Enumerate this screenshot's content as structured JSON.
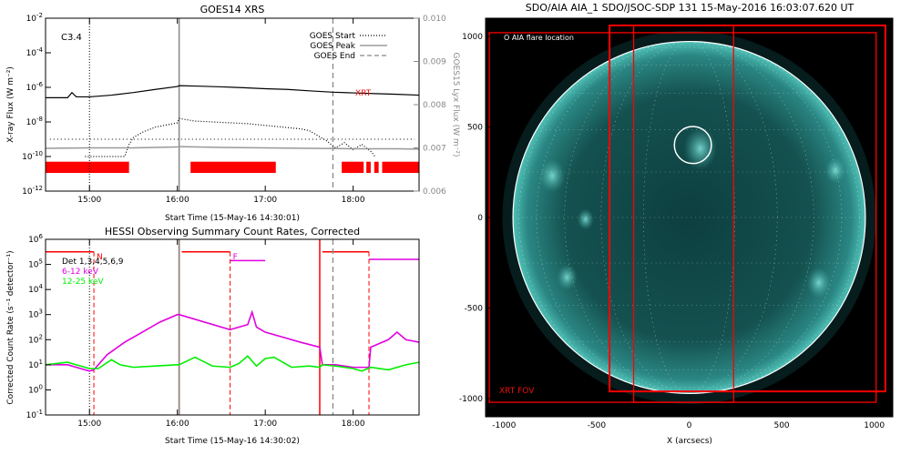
{
  "colors": {
    "red": "#ff0000",
    "magenta": "#e000e0",
    "green": "#00ee00",
    "gray": "#888888",
    "sun_dark": "#0a3a3c",
    "sun_light": "#3fa6a0"
  },
  "chart_data": [
    {
      "type": "line",
      "id": "goes",
      "title": "GOES14 XRS",
      "xlabel": "Start Time (15-May-16 14:30:01)",
      "ylabel": "X-ray Flux (W m⁻²)",
      "ylabel_right": "GOES15 Lyx Flux (W m⁻²)",
      "xticks": [
        {
          "t": 15,
          "label": "15:00"
        },
        {
          "t": 16,
          "label": "16:00"
        },
        {
          "t": 17,
          "label": "17:00"
        },
        {
          "t": 18,
          "label": "18:00"
        }
      ],
      "xlim": [
        14.5,
        18.75
      ],
      "ylim_log": [
        -12,
        -2
      ],
      "yticks": [
        {
          "e": -2,
          "base": "10",
          "exp": "-2"
        },
        {
          "e": -4,
          "base": "10",
          "exp": "-4"
        },
        {
          "e": -6,
          "base": "10",
          "exp": "-6"
        },
        {
          "e": -8,
          "base": "10",
          "exp": "-8"
        },
        {
          "e": -10,
          "base": "10",
          "exp": "-10"
        },
        {
          "e": -12,
          "base": "10",
          "exp": "-12"
        }
      ],
      "yticks_right": [
        "0.010",
        "0.009",
        "0.008",
        "0.007",
        "0.006"
      ],
      "ylim_right": [
        0.006,
        0.01
      ],
      "class_label": "C3.4",
      "xrt_label": "XRT",
      "legend": [
        {
          "name": "GOES Start",
          "style": "dotted"
        },
        {
          "name": "GOES Peak",
          "style": "solid"
        },
        {
          "name": "GOES End",
          "style": "dashed"
        }
      ],
      "events": {
        "start": 15.0,
        "peak": 16.02,
        "end": 17.77
      },
      "series": [
        {
          "name": "long",
          "t": [
            14.5,
            14.75,
            14.8,
            14.85,
            14.9,
            15.0,
            15.25,
            15.5,
            15.75,
            16.0,
            16.02,
            16.25,
            16.5,
            16.75,
            17.0,
            17.25,
            17.5,
            17.77,
            18.0,
            18.25,
            18.5,
            18.75
          ],
          "log": [
            -6.6,
            -6.6,
            -6.3,
            -6.55,
            -6.55,
            -6.55,
            -6.45,
            -6.3,
            -6.12,
            -5.95,
            -5.9,
            -5.93,
            -5.97,
            -6.02,
            -6.08,
            -6.12,
            -6.2,
            -6.28,
            -6.32,
            -6.36,
            -6.4,
            -6.45
          ]
        },
        {
          "name": "short",
          "t": [
            14.95,
            15.4,
            15.45,
            15.5,
            15.6,
            15.75,
            15.9,
            16.0,
            16.02,
            16.2,
            16.4,
            16.6,
            16.8,
            17.0,
            17.2,
            17.4,
            17.5,
            17.6,
            17.7,
            17.8,
            17.9,
            18.0,
            18.1,
            18.2,
            18.25
          ],
          "log": [
            -10.0,
            -10.0,
            -9.3,
            -8.9,
            -8.6,
            -8.3,
            -8.15,
            -8.05,
            -7.8,
            -7.95,
            -8.0,
            -8.05,
            -8.1,
            -8.2,
            -8.3,
            -8.4,
            -8.5,
            -8.8,
            -9.1,
            -9.5,
            -9.2,
            -9.6,
            -9.3,
            -9.7,
            -10.0
          ]
        },
        {
          "name": "lyx",
          "t": [
            14.5,
            15.0,
            15.5,
            16.0,
            16.02,
            16.5,
            17.0,
            17.5,
            18.0,
            18.5,
            18.75
          ],
          "val": [
            0.00699,
            0.007,
            0.007,
            0.00702,
            0.00703,
            0.00701,
            0.007,
            0.00699,
            0.00698,
            0.00698,
            0.00697
          ]
        }
      ],
      "red_bars": [
        [
          14.5,
          15.45
        ],
        [
          16.15,
          17.12
        ],
        [
          17.87,
          18.12
        ],
        [
          18.15,
          18.2
        ],
        [
          18.24,
          18.29
        ],
        [
          18.33,
          18.75
        ]
      ]
    },
    {
      "type": "line",
      "id": "hessi",
      "title": "HESSI Observing Summary Count Rates, Corrected",
      "xlabel": "Start Time (15-May-16 14:30:02)",
      "ylabel": "Corrected Count Rate (s⁻¹ detector⁻¹)",
      "xticks": [
        {
          "t": 15,
          "label": "15:00"
        },
        {
          "t": 16,
          "label": "16:00"
        },
        {
          "t": 17,
          "label": "17:00"
        },
        {
          "t": 18,
          "label": "18:00"
        }
      ],
      "xlim": [
        14.5,
        18.75
      ],
      "ylim_log": [
        -1,
        6
      ],
      "yticks": [
        {
          "e": 6,
          "base": "10",
          "exp": "6"
        },
        {
          "e": 5,
          "base": "10",
          "exp": "5"
        },
        {
          "e": 4,
          "base": "10",
          "exp": "4"
        },
        {
          "e": 3,
          "base": "10",
          "exp": "3"
        },
        {
          "e": 2,
          "base": "10",
          "exp": "2"
        },
        {
          "e": 1,
          "base": "10",
          "exp": "1"
        },
        {
          "e": 0,
          "base": "10",
          "exp": "0"
        },
        {
          "e": -1,
          "base": "10",
          "exp": "-1"
        }
      ],
      "legend_title": "Det 1,3,4,5,6,9",
      "legend": [
        {
          "name": "6-12 keV",
          "color": "#e000e0"
        },
        {
          "name": "12-25 keV",
          "color": "#00ee00"
        }
      ],
      "flags": [
        {
          "t": 15.05,
          "label": "N"
        },
        {
          "t": 16.6,
          "label": "F"
        }
      ],
      "flag_lines": [
        15.05,
        16.6,
        18.18
      ],
      "night_starts": [
        16.02,
        17.62
      ],
      "events": {
        "start": 15.0,
        "peak": 16.02,
        "end": 17.77
      },
      "top_bars": [
        [
          14.5,
          15.05,
          5.5
        ],
        [
          16.05,
          16.6,
          5.5
        ],
        [
          16.6,
          17.0,
          5.15
        ],
        [
          17.65,
          18.18,
          5.5
        ],
        [
          18.18,
          18.75,
          5.2
        ]
      ],
      "series": [
        {
          "name": "6-12 keV",
          "color": "#e000e0",
          "t": [
            14.5,
            14.75,
            15.0,
            15.05,
            15.2,
            15.4,
            15.6,
            15.8,
            16.0,
            16.02,
            16.6,
            16.8,
            16.85,
            16.9,
            17.0,
            17.2,
            17.4,
            17.62,
            17.65,
            17.8,
            18.0,
            18.18,
            18.2,
            18.4,
            18.5,
            18.6,
            18.75
          ],
          "log": [
            1.0,
            1.0,
            0.75,
            0.8,
            1.4,
            1.9,
            2.3,
            2.7,
            3.0,
            3.0,
            2.4,
            2.6,
            3.1,
            2.5,
            2.3,
            2.1,
            1.9,
            1.7,
            1.0,
            1.0,
            0.9,
            0.9,
            1.7,
            2.0,
            2.3,
            2.0,
            1.9
          ]
        },
        {
          "name": "12-25 keV",
          "color": "#00ee00",
          "t": [
            14.5,
            14.75,
            15.0,
            15.1,
            15.25,
            15.35,
            15.5,
            15.75,
            16.0,
            16.02,
            16.2,
            16.4,
            16.6,
            16.7,
            16.8,
            16.9,
            17.0,
            17.1,
            17.3,
            17.5,
            17.62,
            17.65,
            17.8,
            18.0,
            18.1,
            18.2,
            18.4,
            18.6,
            18.75
          ],
          "log": [
            1.0,
            1.1,
            0.85,
            0.85,
            1.2,
            1.0,
            0.9,
            0.95,
            1.0,
            1.0,
            1.3,
            0.95,
            0.9,
            1.05,
            1.35,
            0.95,
            1.25,
            1.3,
            0.9,
            0.95,
            0.9,
            1.0,
            0.95,
            0.85,
            0.75,
            0.9,
            0.8,
            1.0,
            1.1
          ]
        }
      ]
    },
    {
      "type": "image",
      "id": "aia",
      "title": "SDO/AIA AIA_1 SDO/JSOC-SDP 131 15-May-2016 16:03:07.620 UT",
      "xlabel": "X (arcsecs)",
      "xticks": [
        -1000,
        -500,
        0,
        500,
        1000
      ],
      "yticks": [
        1000,
        500,
        0,
        -500,
        -1000
      ],
      "xlim": [
        -1100,
        1100
      ],
      "ylim": [
        -1100,
        1100
      ],
      "solar_radius": 952,
      "flare": {
        "x": 20,
        "y": 400,
        "r": 100
      },
      "flare_label": "O AIA flare location",
      "fov_label": "XRT FOV",
      "fovs": [
        [
          -1080,
          1020,
          1010,
          -1020
        ],
        [
          -430,
          1060,
          1060,
          -960
        ],
        [
          -300,
          1060,
          240,
          -1020
        ]
      ]
    }
  ]
}
